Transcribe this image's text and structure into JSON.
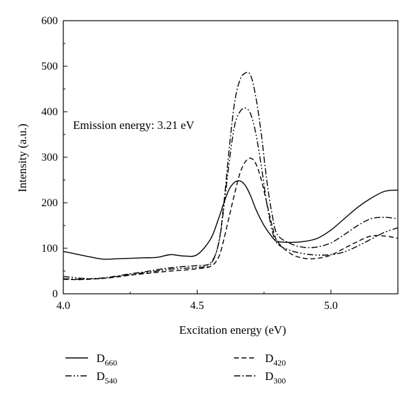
{
  "chart_data": {
    "type": "line",
    "title": "",
    "xlabel": "Excitation energy (eV)",
    "ylabel": "Intensity (a.u.)",
    "xlim": [
      4.0,
      5.25
    ],
    "ylim": [
      0,
      600
    ],
    "xticks": [
      "4.0",
      "4.5",
      "5.0"
    ],
    "yticks": [
      "0",
      "100",
      "200",
      "300",
      "400",
      "500",
      "600"
    ],
    "annotation": "Emission energy: 3.21 eV",
    "grid": false,
    "legend_position": "bottom",
    "series": [
      {
        "name": "D",
        "subscript": "660",
        "dash": "solid",
        "x": [
          4.0,
          4.05,
          4.1,
          4.15,
          4.2,
          4.25,
          4.3,
          4.35,
          4.4,
          4.45,
          4.5,
          4.55,
          4.58,
          4.6,
          4.62,
          4.64,
          4.66,
          4.68,
          4.7,
          4.72,
          4.75,
          4.78,
          4.8,
          4.85,
          4.9,
          4.95,
          5.0,
          5.05,
          5.1,
          5.15,
          5.2,
          5.25
        ],
        "y": [
          93,
          87,
          81,
          76,
          77,
          78,
          79,
          80,
          86,
          83,
          86,
          120,
          165,
          200,
          230,
          245,
          248,
          238,
          215,
          185,
          150,
          125,
          115,
          113,
          115,
          122,
          140,
          165,
          190,
          210,
          225,
          228
        ]
      },
      {
        "name": "D",
        "subscript": "540",
        "dash": "dashdotdot",
        "x": [
          4.0,
          4.05,
          4.1,
          4.15,
          4.2,
          4.25,
          4.3,
          4.35,
          4.4,
          4.45,
          4.5,
          4.55,
          4.58,
          4.6,
          4.62,
          4.64,
          4.66,
          4.68,
          4.7,
          4.72,
          4.74,
          4.76,
          4.78,
          4.8,
          4.85,
          4.9,
          4.95,
          5.0,
          5.05,
          5.1,
          5.15,
          5.2,
          5.25
        ],
        "y": [
          38,
          35,
          33,
          34,
          38,
          42,
          46,
          50,
          54,
          56,
          58,
          65,
          110,
          190,
          290,
          370,
          400,
          408,
          395,
          350,
          280,
          200,
          140,
          110,
          95,
          88,
          85,
          86,
          92,
          105,
          120,
          135,
          145
        ]
      },
      {
        "name": "D",
        "subscript": "420",
        "dash": "dashed",
        "x": [
          4.0,
          4.05,
          4.1,
          4.15,
          4.2,
          4.25,
          4.3,
          4.35,
          4.4,
          4.45,
          4.5,
          4.55,
          4.58,
          4.6,
          4.62,
          4.64,
          4.66,
          4.68,
          4.7,
          4.72,
          4.74,
          4.76,
          4.78,
          4.8,
          4.85,
          4.9,
          4.95,
          5.0,
          5.05,
          5.1,
          5.15,
          5.2,
          5.25
        ],
        "y": [
          32,
          31,
          32,
          34,
          37,
          41,
          44,
          47,
          50,
          52,
          55,
          60,
          80,
          120,
          170,
          220,
          265,
          290,
          298,
          285,
          250,
          200,
          150,
          115,
          88,
          78,
          78,
          85,
          100,
          115,
          127,
          127,
          122
        ]
      },
      {
        "name": "D",
        "subscript": "300",
        "dash": "dashdot",
        "x": [
          4.0,
          4.05,
          4.1,
          4.15,
          4.2,
          4.25,
          4.3,
          4.35,
          4.4,
          4.45,
          4.5,
          4.55,
          4.58,
          4.6,
          4.62,
          4.64,
          4.66,
          4.68,
          4.7,
          4.72,
          4.74,
          4.76,
          4.78,
          4.8,
          4.85,
          4.9,
          4.95,
          5.0,
          5.05,
          5.1,
          5.15,
          5.2,
          5.25
        ],
        "y": [
          33,
          32,
          33,
          35,
          39,
          44,
          48,
          53,
          57,
          60,
          62,
          68,
          110,
          200,
          320,
          420,
          470,
          485,
          480,
          430,
          350,
          250,
          175,
          130,
          110,
          102,
          103,
          112,
          130,
          150,
          165,
          168,
          165
        ]
      }
    ]
  }
}
